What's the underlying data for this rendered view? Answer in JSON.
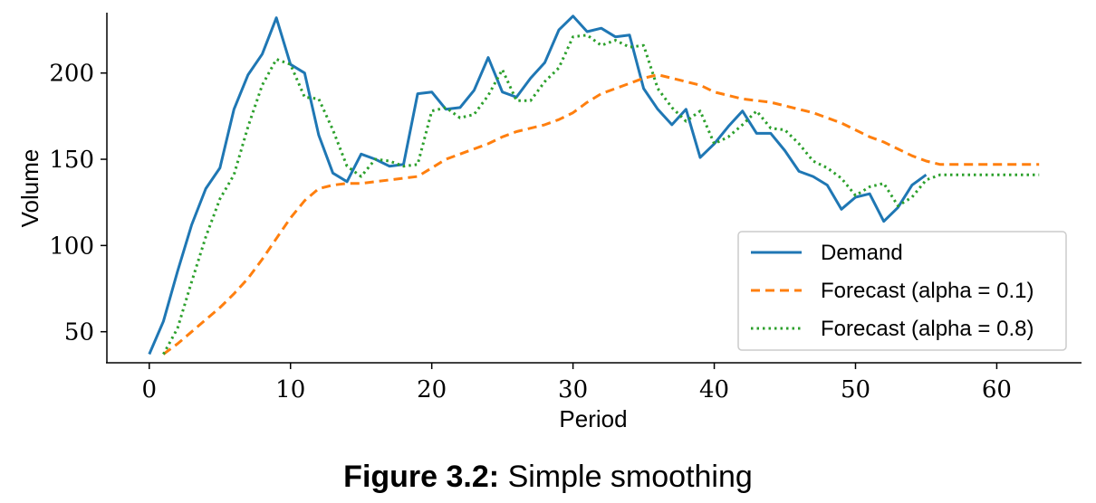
{
  "chart_data": {
    "type": "line",
    "title": "",
    "xlabel": "Period",
    "ylabel": "Volume",
    "xlim": [
      -3,
      66
    ],
    "ylim": [
      32,
      235
    ],
    "xticks": [
      0,
      10,
      20,
      30,
      40,
      50,
      60
    ],
    "yticks": [
      50,
      100,
      150,
      200
    ],
    "legend_position": "bottom-right",
    "series": [
      {
        "name": "Demand",
        "color": "#1f77b4",
        "style": "solid",
        "x": [
          0,
          1,
          2,
          3,
          4,
          5,
          6,
          7,
          8,
          9,
          10,
          11,
          12,
          13,
          14,
          15,
          16,
          17,
          18,
          19,
          20,
          21,
          22,
          23,
          24,
          25,
          26,
          27,
          28,
          29,
          30,
          31,
          32,
          33,
          34,
          35,
          36,
          37,
          38,
          39,
          40,
          41,
          42,
          43,
          44,
          45,
          46,
          47,
          48,
          49,
          50,
          51,
          52,
          53,
          54,
          55
        ],
        "values": [
          37,
          56,
          85,
          112,
          133,
          145,
          179,
          199,
          211,
          232,
          205,
          200,
          164,
          142,
          137,
          153,
          150,
          146,
          147,
          188,
          189,
          179,
          180,
          190,
          209,
          189,
          186,
          197,
          206,
          225,
          233,
          224,
          226,
          221,
          222,
          191,
          179,
          170,
          179,
          151,
          159,
          169,
          178,
          165,
          165,
          155,
          143,
          140,
          135,
          121,
          128,
          130,
          114,
          122,
          135,
          141
        ]
      },
      {
        "name": "Forecast (alpha = 0.1)",
        "color": "#ff7f0e",
        "style": "dashed",
        "x": [
          1,
          2,
          3,
          4,
          5,
          6,
          7,
          8,
          9,
          10,
          11,
          12,
          13,
          14,
          15,
          16,
          17,
          18,
          19,
          20,
          21,
          22,
          23,
          24,
          25,
          26,
          27,
          28,
          29,
          30,
          31,
          32,
          33,
          34,
          35,
          36,
          37,
          38,
          39,
          40,
          41,
          42,
          43,
          44,
          45,
          46,
          47,
          48,
          49,
          50,
          51,
          52,
          53,
          54,
          55,
          56,
          57,
          58,
          59,
          60,
          61,
          62,
          63
        ],
        "values": [
          37,
          43,
          50,
          57,
          64,
          72,
          81,
          92,
          104,
          116,
          126,
          133,
          135,
          136,
          136,
          137,
          138,
          139,
          140,
          145,
          150,
          153,
          156,
          159,
          163,
          166,
          168,
          170,
          173,
          177,
          183,
          188,
          191,
          194,
          197,
          199,
          197,
          195,
          193,
          189,
          187,
          185,
          184,
          183,
          181,
          179,
          177,
          174,
          171,
          167,
          163,
          160,
          156,
          152,
          149,
          147,
          147,
          147,
          147,
          147,
          147,
          147,
          147
        ]
      },
      {
        "name": "Forecast (alpha = 0.8)",
        "color": "#2ca02c",
        "style": "dotted",
        "x": [
          1,
          2,
          3,
          4,
          5,
          6,
          7,
          8,
          9,
          10,
          11,
          12,
          13,
          14,
          15,
          16,
          17,
          18,
          19,
          20,
          21,
          22,
          23,
          24,
          25,
          26,
          27,
          28,
          29,
          30,
          31,
          32,
          33,
          34,
          35,
          36,
          37,
          38,
          39,
          40,
          41,
          42,
          43,
          44,
          45,
          46,
          47,
          48,
          49,
          50,
          51,
          52,
          53,
          54,
          55,
          56,
          57,
          58,
          59,
          60,
          61,
          62,
          63
        ],
        "values": [
          37,
          52,
          79,
          105,
          127,
          141,
          169,
          193,
          208,
          205,
          186,
          185,
          167,
          146,
          140,
          150,
          149,
          146,
          147,
          178,
          180,
          174,
          176,
          187,
          202,
          184,
          184,
          195,
          203,
          221,
          222,
          216,
          219,
          215,
          216,
          191,
          180,
          172,
          178,
          159,
          163,
          170,
          178,
          168,
          167,
          159,
          149,
          145,
          139,
          129,
          134,
          136,
          123,
          128,
          138,
          141,
          141,
          141,
          141,
          141,
          141,
          141,
          141
        ]
      }
    ]
  },
  "caption": {
    "number": "Figure 3.2:",
    "text": "Simple smoothing"
  }
}
